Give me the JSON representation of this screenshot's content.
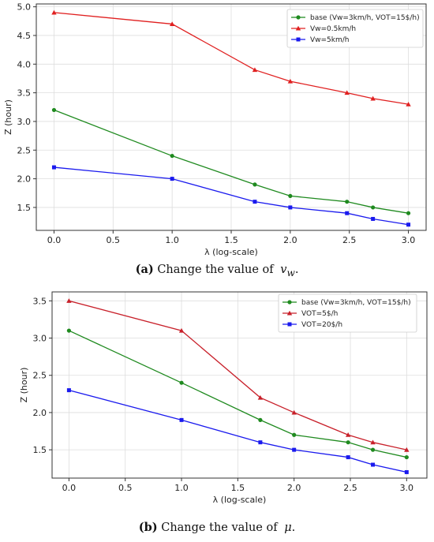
{
  "chart_data": [
    {
      "type": "line",
      "x": [
        0.0,
        1.0,
        1.7,
        2.0,
        2.48,
        2.7,
        3.0
      ],
      "xlabel": "λ (log-scale)",
      "ylabel": "Z (hour)",
      "xlim": [
        -0.15,
        3.15
      ],
      "ylim": [
        1.1,
        5.05
      ],
      "xticks": [
        "0.0",
        "0.5",
        "1.0",
        "1.5",
        "2.0",
        "2.5",
        "3.0"
      ],
      "yticks": [
        "1.5",
        "2.0",
        "2.5",
        "3.0",
        "3.5",
        "4.0",
        "4.5",
        "5.0"
      ],
      "grid": true,
      "legend_position": "top-right",
      "series": [
        {
          "name": "base (Vw=3km/h, VOT=15$/h)",
          "color": "#1f8a1f",
          "marker": "circle",
          "values": [
            3.2,
            2.4,
            1.9,
            1.7,
            1.6,
            1.5,
            1.4
          ]
        },
        {
          "name": "Vw=0.5km/h",
          "color": "#e02020",
          "marker": "triangle",
          "values": [
            4.9,
            4.7,
            3.9,
            3.7,
            3.5,
            3.4,
            3.3
          ]
        },
        {
          "name": "Vw=5km/h",
          "color": "#1a1aee",
          "marker": "square",
          "values": [
            2.2,
            2.0,
            1.6,
            1.5,
            1.4,
            1.3,
            1.2
          ]
        }
      ],
      "caption_label": "(a)",
      "caption_text": "Change the value of",
      "caption_symbol": "v_w"
    },
    {
      "type": "line",
      "x": [
        0.0,
        1.0,
        1.7,
        2.0,
        2.48,
        2.7,
        3.0
      ],
      "xlabel": "λ (log-scale)",
      "ylabel": "Z (hour)",
      "xlim": [
        -0.15,
        3.18
      ],
      "ylim": [
        1.12,
        3.62
      ],
      "xticks": [
        "0.0",
        "0.5",
        "1.0",
        "1.5",
        "2.0",
        "2.5",
        "3.0"
      ],
      "yticks": [
        "1.5",
        "2.0",
        "2.5",
        "3.0",
        "3.5"
      ],
      "grid": true,
      "legend_position": "top-right",
      "series": [
        {
          "name": "base (Vw=3km/h, VOT=15$/h)",
          "color": "#1f8a1f",
          "marker": "circle",
          "values": [
            3.1,
            2.4,
            1.9,
            1.7,
            1.6,
            1.5,
            1.4
          ]
        },
        {
          "name": "VOT=5$/h",
          "color": "#c8202a",
          "marker": "triangle",
          "values": [
            3.5,
            3.1,
            2.2,
            2.0,
            1.7,
            1.6,
            1.5
          ]
        },
        {
          "name": "VOT=20$/h",
          "color": "#1a1aee",
          "marker": "square",
          "values": [
            2.3,
            1.9,
            1.6,
            1.5,
            1.4,
            1.3,
            1.2
          ]
        }
      ],
      "caption_label": "(b)",
      "caption_text": "Change the value of",
      "caption_symbol": "μ"
    }
  ]
}
